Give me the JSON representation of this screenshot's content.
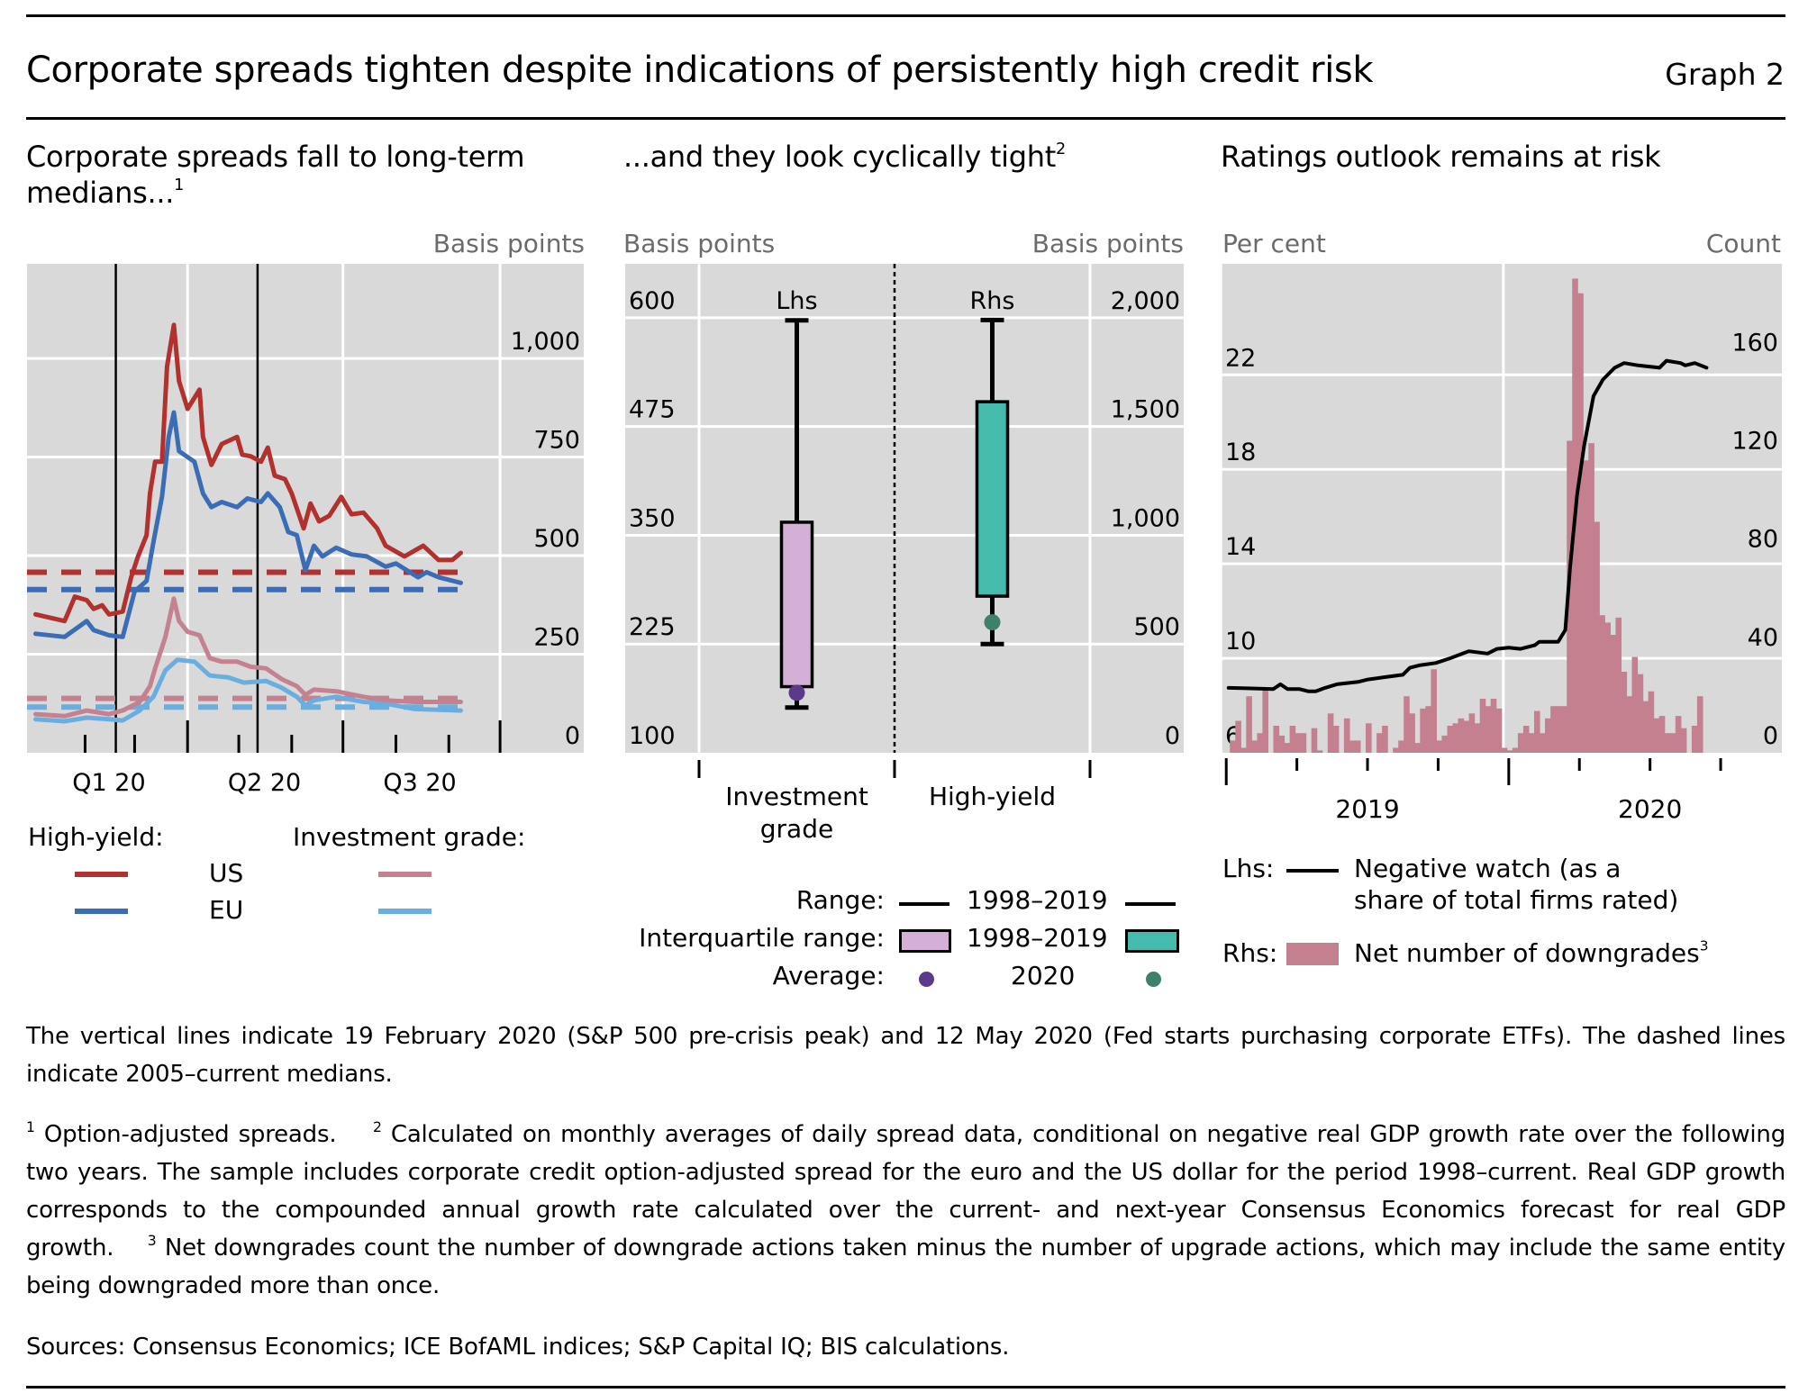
{
  "header": {
    "title": "Corporate spreads tighten despite indications of persistently high credit risk",
    "graph_number": "Graph 2"
  },
  "colors": {
    "plot_bg": "#D9D9D9",
    "grid": "#FFFFFF",
    "hy_us": "#B2302E",
    "hy_eu": "#3A6DB5",
    "ig_us": "#C4818F",
    "ig_eu": "#6AAEE0",
    "ig_box": "#D4B0D6",
    "hy_box": "#45BBAD",
    "ig_avg": "#5C3A8A",
    "hy_avg": "#3F7F6C",
    "downgrades_bar": "#C4808F",
    "negative_watch": "#000000"
  },
  "chart_data": [
    {
      "id": "left",
      "type": "line",
      "title": "Corporate spreads fall to long-term medians...",
      "title_footnote": "1",
      "ylabel": "Basis points",
      "y_axis_side": "right",
      "ylim": [
        0,
        1240
      ],
      "yticks": [
        0,
        250,
        500,
        750,
        1000
      ],
      "ytick_labels": [
        "0",
        "250",
        "500",
        "750",
        "1,000"
      ],
      "x_unit": "days since 1 Jan 2020",
      "xlim": [
        -3,
        323
      ],
      "xtick_labels": [
        {
          "label": "Q1 20",
          "day": 45
        },
        {
          "label": "Q2 20",
          "day": 136
        },
        {
          "label": "Q3 20",
          "day": 227
        }
      ],
      "month_ticks": [
        31,
        60,
        121,
        152,
        213,
        244
      ],
      "quarter_ticks": [
        91,
        182,
        274
      ],
      "grid": true,
      "vertical_lines": [
        {
          "label": "19 February 2020",
          "day": 49
        },
        {
          "label": "12 May 2020",
          "day": 132
        }
      ],
      "series": [
        {
          "name": "High-yield US",
          "group": "High-yield",
          "region": "US",
          "color_key": "hy_us",
          "median": 458,
          "x": [
            2,
            19,
            25,
            32,
            36,
            41,
            45,
            53,
            58,
            62,
            67,
            69,
            72,
            76,
            79,
            83,
            86,
            91,
            98,
            100,
            105,
            111,
            120,
            123,
            128,
            134,
            138,
            142,
            148,
            152,
            159,
            163,
            168,
            174,
            181,
            187,
            194,
            202,
            207,
            218,
            229,
            238,
            246,
            251
          ],
          "y": [
            351,
            334,
            396,
            387,
            365,
            374,
            351,
            358,
            445,
            498,
            552,
            658,
            738,
            738,
            979,
            1085,
            943,
            872,
            921,
            801,
            730,
            783,
            801,
            756,
            752,
            738,
            774,
            703,
            694,
            658,
            569,
            632,
            587,
            601,
            649,
            605,
            609,
            569,
            525,
            498,
            525,
            489,
            489,
            507
          ]
        },
        {
          "name": "High-yield EU",
          "group": "High-yield",
          "region": "EU",
          "color_key": "hy_eu",
          "median": 414,
          "x": [
            2,
            19,
            32,
            36,
            45,
            53,
            60,
            67,
            71,
            76,
            80,
            83,
            86,
            95,
            100,
            105,
            111,
            120,
            126,
            134,
            138,
            145,
            150,
            155,
            160,
            165,
            170,
            178,
            187,
            196,
            207,
            213,
            226,
            231,
            238,
            251
          ],
          "y": [
            302,
            294,
            334,
            311,
            298,
            294,
            409,
            436,
            534,
            649,
            801,
            863,
            765,
            738,
            658,
            623,
            636,
            623,
            645,
            636,
            658,
            623,
            560,
            552,
            463,
            525,
            498,
            520,
            503,
            498,
            472,
            480,
            445,
            458,
            445,
            431
          ]
        },
        {
          "name": "Investment grade US",
          "group": "Investment grade",
          "region": "US",
          "color_key": "ig_us",
          "median": 138,
          "x": [
            2,
            19,
            32,
            45,
            53,
            63,
            69,
            72,
            78,
            83,
            86,
            91,
            98,
            104,
            111,
            120,
            128,
            137,
            146,
            155,
            160,
            165,
            178,
            194,
            207,
            224,
            238,
            251
          ],
          "y": [
            98,
            93,
            107,
            98,
            107,
            129,
            169,
            214,
            294,
            391,
            334,
            307,
            298,
            240,
            231,
            231,
            218,
            214,
            187,
            169,
            147,
            160,
            156,
            142,
            133,
            129,
            129,
            129
          ]
        },
        {
          "name": "Investment grade EU",
          "group": "Investment grade",
          "region": "EU",
          "color_key": "ig_eu",
          "median": 116,
          "x": [
            2,
            19,
            32,
            45,
            53,
            63,
            71,
            78,
            85,
            95,
            104,
            115,
            124,
            137,
            146,
            155,
            160,
            165,
            178,
            194,
            207,
            224,
            238,
            251
          ],
          "y": [
            85,
            80,
            89,
            85,
            82,
            107,
            142,
            209,
            236,
            231,
            196,
            191,
            178,
            182,
            165,
            142,
            120,
            133,
            142,
            129,
            125,
            111,
            109,
            107
          ]
        }
      ]
    },
    {
      "id": "middle",
      "type": "box",
      "title": "...and they look cyclically tight",
      "title_footnote": "2",
      "ylabel_left": "Basis points",
      "ylabel_right": "Basis points",
      "left_axis": {
        "ylim": [
          100,
          662
        ],
        "ticks": [
          100,
          225,
          350,
          475,
          600
        ],
        "tick_labels": [
          "100",
          "225",
          "350",
          "475",
          "600"
        ]
      },
      "right_axis": {
        "ylim": [
          0,
          2248
        ],
        "ticks": [
          0,
          500,
          1000,
          1500,
          2000
        ],
        "tick_labels": [
          "0",
          "500",
          "1,000",
          "1,500",
          "2,000"
        ]
      },
      "panel_labels": [
        "Lhs",
        "Rhs"
      ],
      "categories": [
        "Investment grade",
        "High-yield"
      ],
      "boxes": [
        {
          "category": "Investment grade",
          "axis": "left",
          "range_min": 152,
          "range_max": 597,
          "q1": 176,
          "q3": 365,
          "average_2020": 169,
          "box_color_key": "ig_box",
          "dot_color_key": "ig_avg"
        },
        {
          "category": "High-yield",
          "axis": "right",
          "range_min": 500,
          "range_max": 1990,
          "q1": 720,
          "q3": 1614,
          "average_2020": 600,
          "box_color_key": "hy_box",
          "dot_color_key": "hy_avg"
        }
      ],
      "legend": {
        "range_label": "Range:",
        "iqr_label": "Interquartile range:",
        "average_label": "Average:",
        "period_hist": "1998–2019",
        "period_current": "2020"
      }
    },
    {
      "id": "right",
      "type": "bar+line",
      "title": "Ratings outlook remains at risk",
      "ylabel_left": "Per cent",
      "ylabel_right": "Count",
      "left_axis": {
        "ylim": [
          6,
          26.7
        ],
        "ticks": [
          6,
          10,
          14,
          18,
          22
        ],
        "tick_labels": [
          "6",
          "10",
          "14",
          "18",
          "22"
        ]
      },
      "right_axis": {
        "ylim": [
          0,
          199
        ],
        "ticks": [
          0,
          40,
          80,
          120,
          160
        ],
        "tick_labels": [
          "0",
          "40",
          "80",
          "120",
          "160"
        ]
      },
      "x_unit": "months since Jan 2019",
      "xlim": [
        -0.2,
        23.6
      ],
      "year_labels": [
        {
          "label": "2019",
          "month": 6
        },
        {
          "label": "2020",
          "month": 18
        }
      ],
      "year_ticks": [
        0,
        12
      ],
      "quarter_ticks": [
        3,
        6,
        9,
        15,
        18,
        21
      ],
      "line": {
        "name": "Negative watch (as a share of total firms rated)",
        "axis": "left",
        "color_key": "negative_watch",
        "x": [
          0.1,
          2.0,
          2.3,
          2.6,
          3.1,
          3.5,
          3.8,
          4.2,
          4.7,
          5.6,
          6.0,
          6.7,
          7.5,
          7.8,
          8.2,
          8.9,
          9.5,
          10.3,
          11.1,
          11.5,
          12.0,
          12.5,
          13.1,
          13.3,
          14.1,
          14.4,
          14.6,
          14.9,
          15.2,
          15.6,
          16.0,
          16.5,
          16.9,
          17.5,
          18.4,
          18.7,
          19.3,
          19.5,
          19.9,
          20.4
        ],
        "y": [
          8.75,
          8.7,
          8.9,
          8.7,
          8.7,
          8.6,
          8.6,
          8.75,
          8.9,
          9.0,
          9.1,
          9.2,
          9.3,
          9.6,
          9.7,
          9.8,
          10.0,
          10.3,
          10.2,
          10.4,
          10.45,
          10.4,
          10.55,
          10.7,
          10.7,
          11.2,
          13.8,
          16.9,
          19.0,
          21.1,
          21.8,
          22.3,
          22.5,
          22.4,
          22.3,
          22.6,
          22.5,
          22.4,
          22.5,
          22.3
        ]
      },
      "bars": {
        "name": "Net number of downgrades",
        "name_footnote": "3",
        "axis": "right",
        "color_key": "downgrades_bar",
        "frequency": "weekly",
        "start": "first week of 2019",
        "values": [
          5,
          13,
          2,
          23,
          5,
          8,
          26,
          0,
          11,
          7,
          4,
          11,
          8,
          8,
          0,
          10,
          1,
          0,
          16,
          11,
          0,
          14,
          5,
          5,
          0,
          12,
          0,
          8,
          11,
          0,
          2,
          5,
          23,
          16,
          4,
          18,
          19,
          34,
          5,
          7,
          11,
          12,
          14,
          13,
          16,
          12,
          22,
          19,
          22,
          18,
          2,
          1,
          2,
          8,
          11,
          8,
          17,
          8,
          14,
          19,
          19,
          19,
          127,
          193,
          187,
          119,
          126,
          94,
          56,
          53,
          48,
          55,
          33,
          23,
          39,
          32,
          21,
          25,
          14,
          15,
          8,
          8,
          15,
          10,
          0,
          11,
          23
        ]
      },
      "legend": {
        "lhs_label": "Lhs:",
        "rhs_label": "Rhs:",
        "line_text_1": "Negative watch (as a",
        "line_text_2": "share of total firms rated)",
        "bar_text": "Net number of downgrades",
        "bar_footnote": "3"
      }
    }
  ],
  "left_legend": {
    "hy_label": "High-yield:",
    "ig_label": "Investment grade:",
    "us_label": "US",
    "eu_label": "EU"
  },
  "notes": {
    "main": "The vertical lines indicate 19 February 2020 (S&P 500 pre-crisis peak) and 12 May 2020 (Fed starts purchasing corporate ETFs). The dashed lines indicate 2005–current medians.",
    "fn1_mark": "1",
    "fn1": "Option-adjusted spreads.",
    "fn2_mark": "2",
    "fn2": "Calculated on monthly averages of daily spread data, conditional on negative real GDP growth rate over the following two years. The sample includes corporate credit option-adjusted spread for the euro and the US dollar for the period 1998–current. Real GDP growth corresponds to the compounded annual growth rate calculated over the current- and next-year Consensus Economics forecast for real GDP growth.",
    "fn3_mark": "3",
    "fn3": "Net downgrades count the number of downgrade actions taken minus the number of upgrade actions, which may include the same entity being downgraded more than once.",
    "sources": "Sources: Consensus Economics; ICE BofAML indices; S&P Capital IQ; BIS calculations."
  }
}
